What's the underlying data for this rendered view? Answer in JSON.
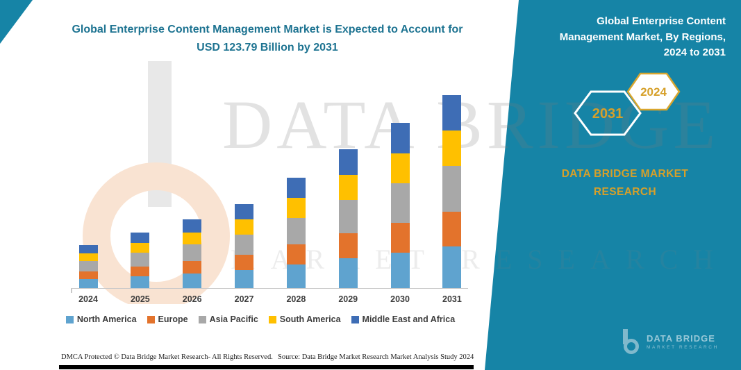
{
  "colors": {
    "teal": "#1684A6",
    "title_teal": "#1D7391",
    "gold": "#D6A02A"
  },
  "header": {
    "title_lines": [
      "Global Enterprise Content Management Market is Expected to Account for",
      "USD 123.79 Billion by 2031"
    ]
  },
  "side_panel": {
    "heading_lines": [
      "Global Enterprise Content",
      "Management Market, By Regions,",
      "2024 to 2031"
    ],
    "hexagons": [
      {
        "label": "2031"
      },
      {
        "label": "2024"
      }
    ],
    "brand_lines": [
      "DATA BRIDGE MARKET",
      "RESEARCH"
    ],
    "mini_logo": {
      "title": "DATA BRIDGE",
      "subtitle": "MARKET RESEARCH"
    }
  },
  "watermark": {
    "word": "DATA BRIDGE",
    "sub": "MARKET RESEARCH"
  },
  "footer": {
    "dmca": "DMCA Protected © Data Bridge Market Research-  All Rights Reserved.",
    "source": "Source: Data Bridge Market Research  Market Analysis Study 2024"
  },
  "chart_data": {
    "type": "bar",
    "stacked": true,
    "title": "Global Enterprise Content Management Market is Expected to Account for USD 123.79 Billion by 2031",
    "unit": "USD Billion",
    "categories": [
      "2024",
      "2025",
      "2026",
      "2027",
      "2028",
      "2029",
      "2030",
      "2031"
    ],
    "series": [
      {
        "name": "North America",
        "color": "#5FA3CF",
        "values": [
          5.9,
          7.6,
          9.5,
          11.6,
          15.3,
          19.1,
          22.8,
          26.6
        ]
      },
      {
        "name": "Europe",
        "color": "#E3732C",
        "values": [
          5.0,
          6.4,
          7.9,
          9.7,
          12.8,
          16.0,
          19.1,
          22.3
        ]
      },
      {
        "name": "Asia Pacific",
        "color": "#A8A8A8",
        "values": [
          6.6,
          8.5,
          10.6,
          13.0,
          17.0,
          21.4,
          25.4,
          29.7
        ]
      },
      {
        "name": "South America",
        "color": "#FFC000",
        "values": [
          5.0,
          6.4,
          7.9,
          9.7,
          12.8,
          16.0,
          19.1,
          22.3
        ]
      },
      {
        "name": "Middle East and Africa",
        "color": "#3E6DB5",
        "values": [
          5.0,
          6.6,
          8.1,
          10.0,
          13.1,
          16.5,
          19.6,
          22.89
        ]
      }
    ],
    "totals": [
      27.5,
      35.5,
      44.0,
      54.0,
      71.0,
      89.0,
      106.0,
      123.79
    ],
    "xlabel": "",
    "ylabel": "",
    "ylim": [
      0,
      130
    ],
    "grid": false,
    "legend_position": "bottom"
  }
}
